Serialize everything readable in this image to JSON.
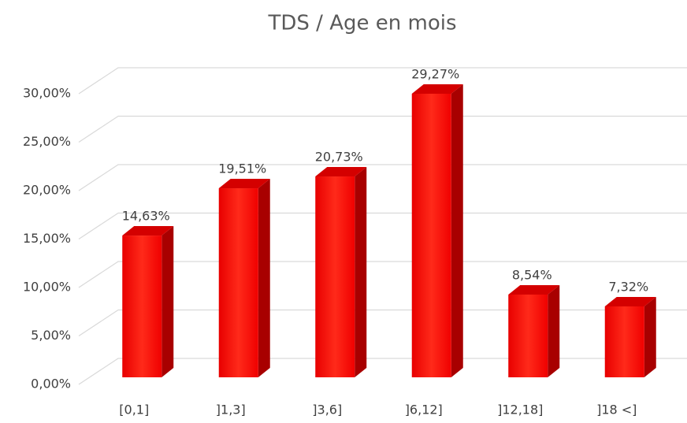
{
  "chart_data": {
    "type": "bar3d",
    "title": "TDS / Age en mois",
    "categories": [
      "[0,1]",
      "]1,3]",
      "]3,6]",
      "]6,12]",
      "]12,18]",
      "]18 <]"
    ],
    "values": [
      14.63,
      19.51,
      20.73,
      29.27,
      8.54,
      7.32
    ],
    "value_labels": [
      "14,63%",
      "19,51%",
      "20,73%",
      "29,27%",
      "8,54%",
      "7,32%"
    ],
    "color": "#ff1010",
    "ylim": [
      0,
      30
    ],
    "yticks": [
      {
        "value": 0,
        "label": "0,00%"
      },
      {
        "value": 5,
        "label": "5,00%"
      },
      {
        "value": 10,
        "label": "10,00%"
      },
      {
        "value": 15,
        "label": "15,00%"
      },
      {
        "value": 20,
        "label": "20,00%"
      },
      {
        "value": 25,
        "label": "25,00%"
      },
      {
        "value": 30,
        "label": "30,00%"
      }
    ],
    "grid": true
  }
}
